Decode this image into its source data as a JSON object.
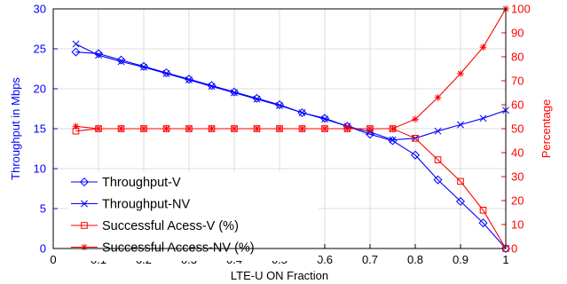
{
  "chart_data": {
    "type": "line",
    "x": [
      0.05,
      0.1,
      0.15,
      0.2,
      0.25,
      0.3,
      0.35,
      0.4,
      0.45,
      0.5,
      0.55,
      0.6,
      0.65,
      0.7,
      0.75,
      0.8,
      0.85,
      0.9,
      0.95,
      1.0
    ],
    "xlabel": "LTE-U ON Fraction",
    "xlim": [
      0,
      1
    ],
    "xticks": [
      "0",
      "0.1",
      "0.2",
      "0.3",
      "0.4",
      "0.5",
      "0.6",
      "0.7",
      "0.8",
      "0.9",
      "1"
    ],
    "ylabel_left": "Throughput in Mbps",
    "ylim_left": [
      0,
      30
    ],
    "yticks_left": [
      "0",
      "5",
      "10",
      "15",
      "20",
      "25",
      "30"
    ],
    "ylabel_right": "Percentage",
    "ylim_right": [
      0,
      100
    ],
    "yticks_right": [
      "0",
      "10",
      "20",
      "30",
      "40",
      "50",
      "60",
      "70",
      "80",
      "90",
      "100"
    ],
    "grid": true,
    "legend_position": "bottom-left",
    "colors": {
      "left_axis": "#0000ff",
      "right_axis": "#ff0000"
    },
    "series": [
      {
        "name": "Throughput-V",
        "axis": "left",
        "color": "#0000ff",
        "marker": "diamond",
        "values": [
          24.6,
          24.4,
          23.6,
          22.8,
          22.0,
          21.2,
          20.4,
          19.6,
          18.8,
          18.0,
          17.0,
          16.3,
          15.3,
          14.3,
          13.5,
          11.7,
          8.6,
          5.9,
          3.2,
          0.0
        ]
      },
      {
        "name": "Throughput-NV",
        "axis": "left",
        "color": "#0000ff",
        "marker": "x",
        "values": [
          25.6,
          24.2,
          23.4,
          22.7,
          21.9,
          21.1,
          20.3,
          19.5,
          18.7,
          17.9,
          17.0,
          16.2,
          15.3,
          14.6,
          13.6,
          13.8,
          14.7,
          15.5,
          16.3,
          17.3
        ]
      },
      {
        "name": "Successful Acess-V (%)",
        "axis": "right",
        "color": "#ff0000",
        "marker": "square",
        "values": [
          49,
          50,
          50,
          50,
          50,
          50,
          50,
          50,
          50,
          50,
          50,
          50,
          50,
          50,
          50,
          46,
          37,
          28,
          16,
          0
        ]
      },
      {
        "name": "Successful Access-NV (%)",
        "axis": "right",
        "color": "#ff0000",
        "marker": "star",
        "values": [
          51,
          50,
          50,
          50,
          50,
          50,
          50,
          50,
          50,
          50,
          50,
          50,
          50,
          50,
          50,
          54,
          63,
          73,
          84,
          100
        ]
      }
    ]
  }
}
